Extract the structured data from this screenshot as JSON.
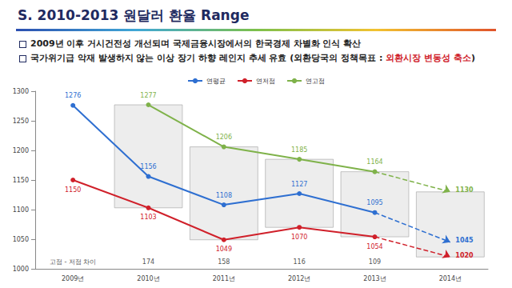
{
  "title": "S. 2010-2013 원달러 환율 Range",
  "bullets": [
    {
      "text": "2009년 이후 거시건전성 개선되며 국제금융시장에서의 한국경제 차별화 인식 확산"
    },
    {
      "text": "국가위기급 악재 발생하지 않는 이상 장기 하향 레인지 추세 유효 (외환당국의 정책목표 : ",
      "highlight": "외환시장 변동성 축소",
      "after": ")"
    }
  ],
  "chart_data": {
    "type": "line",
    "categories": [
      "2009년",
      "2010년",
      "2011년",
      "2012년",
      "2013년",
      "2014년"
    ],
    "series": [
      {
        "name": "연평균",
        "color": "#2e6fd1",
        "values": [
          1276,
          1156,
          1108,
          1127,
          1095,
          1045
        ]
      },
      {
        "name": "연저점",
        "color": "#d0202a",
        "values": [
          1150,
          1103,
          1049,
          1070,
          1054,
          1020
        ]
      },
      {
        "name": "연고점",
        "color": "#7fb24a",
        "values": [
          null,
          1277,
          1206,
          1185,
          1164,
          1130
        ]
      }
    ],
    "ylim": [
      1000,
      1300
    ],
    "yticks": [
      1000,
      1050,
      1100,
      1150,
      1200,
      1250,
      1300
    ],
    "grid": false,
    "legend": "top",
    "data_labels": true,
    "marker": "circle",
    "spread_label": "고점 - 저점 차이",
    "spread": [
      null,
      174,
      158,
      116,
      109,
      null
    ]
  }
}
